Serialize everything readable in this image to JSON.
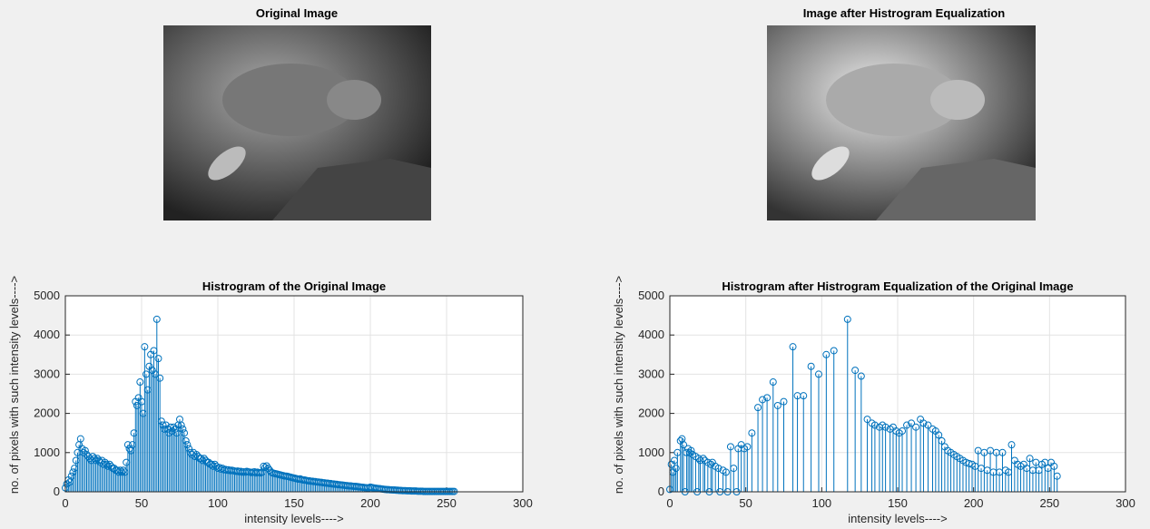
{
  "images": [
    {
      "title": "Original Image"
    },
    {
      "title": "Image after Histrogram Equalization"
    }
  ],
  "chart_data": [
    {
      "type": "stem",
      "title": "Histrogram of the Original Image",
      "x_label": "intensity levels---->",
      "y_label": "no. of pixels with such intensity levels---->",
      "xlim": [
        0,
        300
      ],
      "xticks": [
        0,
        50,
        100,
        150,
        200,
        250,
        300
      ],
      "ylim": [
        0,
        5000
      ],
      "yticks": [
        0,
        1000,
        2000,
        3000,
        4000,
        5000
      ],
      "grid": true,
      "series": [
        {
          "color": "#0072bd",
          "x": [
            0,
            1,
            2,
            3,
            4,
            5,
            6,
            7,
            8,
            9,
            10,
            11,
            12,
            13,
            14,
            15,
            16,
            17,
            18,
            19,
            20,
            21,
            22,
            23,
            24,
            25,
            26,
            27,
            28,
            29,
            30,
            31,
            32,
            33,
            34,
            35,
            36,
            37,
            38,
            39,
            40,
            41,
            42,
            43,
            44,
            45,
            46,
            47,
            48,
            49,
            50,
            51,
            52,
            53,
            54,
            55,
            56,
            57,
            58,
            59,
            60,
            61,
            62,
            63,
            64,
            65,
            66,
            67,
            68,
            69,
            70,
            71,
            72,
            73,
            74,
            75,
            76,
            77,
            78,
            79,
            80,
            81,
            82,
            83,
            84,
            85,
            86,
            87,
            88,
            89,
            90,
            91,
            92,
            93,
            94,
            95,
            96,
            97,
            98,
            99,
            100,
            101,
            102,
            103,
            104,
            105,
            106,
            107,
            108,
            109,
            110,
            111,
            112,
            113,
            114,
            115,
            116,
            117,
            118,
            119,
            120,
            121,
            122,
            123,
            124,
            125,
            126,
            127,
            128,
            129,
            130,
            131,
            132,
            133,
            134,
            135,
            136,
            137,
            138,
            139,
            140,
            141,
            142,
            143,
            144,
            145,
            146,
            147,
            148,
            149,
            150,
            151,
            152,
            153,
            154,
            155,
            156,
            157,
            158,
            159,
            160,
            161,
            162,
            163,
            164,
            165,
            166,
            167,
            168,
            169,
            170,
            171,
            172,
            173,
            174,
            175,
            176,
            177,
            178,
            179,
            180,
            181,
            182,
            183,
            184,
            185,
            186,
            187,
            188,
            189,
            190,
            191,
            192,
            193,
            194,
            195,
            196,
            197,
            198,
            199,
            200,
            201,
            202,
            203,
            204,
            205,
            206,
            207,
            208,
            209,
            210,
            211,
            212,
            213,
            214,
            215,
            216,
            217,
            218,
            219,
            220,
            221,
            222,
            223,
            224,
            225,
            226,
            227,
            228,
            229,
            230,
            231,
            232,
            233,
            234,
            235,
            236,
            237,
            238,
            239,
            240,
            241,
            242,
            243,
            244,
            245,
            246,
            247,
            248,
            249,
            250,
            251,
            252,
            253,
            254,
            255
          ],
          "values": [
            100,
            200,
            300,
            250,
            400,
            500,
            600,
            800,
            1000,
            1200,
            1350,
            1100,
            1000,
            1050,
            950,
            900,
            850,
            800,
            900,
            850,
            800,
            850,
            800,
            750,
            800,
            700,
            750,
            700,
            650,
            700,
            650,
            600,
            600,
            550,
            550,
            500,
            550,
            500,
            550,
            500,
            750,
            1200,
            1100,
            1050,
            1200,
            1500,
            2300,
            2200,
            2400,
            2800,
            2300,
            2000,
            3700,
            3000,
            2600,
            3200,
            3500,
            3100,
            3600,
            3000,
            4400,
            3400,
            2900,
            1800,
            1700,
            1600,
            1700,
            1600,
            1500,
            1650,
            1550,
            1650,
            1600,
            1500,
            1700,
            1850,
            1700,
            1600,
            1500,
            1300,
            1200,
            1100,
            1000,
            950,
            1000,
            900,
            950,
            900,
            850,
            850,
            800,
            850,
            800,
            750,
            750,
            700,
            700,
            650,
            700,
            650,
            600,
            620,
            580,
            600,
            560,
            570,
            550,
            560,
            540,
            550,
            540,
            530,
            520,
            530,
            510,
            520,
            500,
            510,
            500,
            520,
            510,
            500,
            490,
            500,
            510,
            480,
            500,
            490,
            480,
            500,
            650,
            620,
            660,
            600,
            550,
            500,
            480,
            470,
            460,
            450,
            440,
            430,
            420,
            410,
            400,
            400,
            390,
            380,
            370,
            360,
            350,
            340,
            330,
            320,
            330,
            310,
            300,
            300,
            290,
            280,
            280,
            270,
            270,
            260,
            260,
            250,
            250,
            240,
            240,
            230,
            230,
            220,
            220,
            210,
            210,
            200,
            200,
            190,
            190,
            180,
            180,
            175,
            170,
            165,
            160,
            155,
            150,
            150,
            145,
            140,
            140,
            135,
            130,
            125,
            120,
            115,
            110,
            105,
            100,
            95,
            120,
            110,
            100,
            95,
            90,
            85,
            80,
            75,
            70,
            65,
            60,
            55,
            55,
            50,
            50,
            45,
            45,
            40,
            40,
            35,
            35,
            30,
            30,
            30,
            25,
            25,
            25,
            20,
            20,
            20,
            20,
            15,
            15,
            15,
            15,
            10,
            10,
            10,
            10,
            10,
            10,
            10,
            10,
            10,
            10,
            10,
            10,
            10,
            10,
            10,
            10,
            10,
            10,
            10,
            10,
            10
          ]
        }
      ]
    },
    {
      "type": "stem",
      "title": "Histrogram after Histrogram Equalization of the Original Image",
      "x_label": "intensity levels---->",
      "y_label": "no. of pixels with such intensity levels---->",
      "xlim": [
        0,
        300
      ],
      "xticks": [
        0,
        50,
        100,
        150,
        200,
        250,
        300
      ],
      "ylim": [
        0,
        5000
      ],
      "yticks": [
        0,
        1000,
        2000,
        3000,
        4000,
        5000
      ],
      "grid": true,
      "series": [
        {
          "color": "#0072bd",
          "x": [
            0,
            1,
            2,
            3,
            4,
            5,
            7,
            8,
            9,
            10,
            11,
            12,
            13,
            14,
            15,
            17,
            18,
            19,
            20,
            22,
            23,
            25,
            26,
            27,
            28,
            30,
            32,
            33,
            35,
            37,
            38,
            40,
            42,
            44,
            45,
            47,
            49,
            51,
            54,
            58,
            61,
            64,
            68,
            71,
            75,
            81,
            84,
            88,
            93,
            98,
            103,
            108,
            117,
            122,
            126,
            130,
            133,
            135,
            138,
            140,
            142,
            145,
            147,
            149,
            151,
            153,
            156,
            159,
            162,
            165,
            167,
            170,
            173,
            175,
            177,
            179,
            181,
            183,
            185,
            187,
            189,
            191,
            193,
            195,
            197,
            199,
            201,
            203,
            205,
            207,
            209,
            211,
            213,
            215,
            217,
            219,
            221,
            223,
            225,
            227,
            229,
            231,
            233,
            235,
            237,
            239,
            241,
            243,
            245,
            247,
            249,
            251,
            253,
            255
          ],
          "values": [
            60,
            700,
            500,
            800,
            600,
            1000,
            1300,
            1350,
            1200,
            0,
            1000,
            1100,
            1000,
            1050,
            950,
            900,
            0,
            850,
            800,
            850,
            800,
            750,
            0,
            700,
            750,
            650,
            600,
            0,
            550,
            500,
            0,
            1150,
            600,
            0,
            1100,
            1200,
            1100,
            1150,
            1500,
            2150,
            2350,
            2400,
            2800,
            2200,
            2300,
            3700,
            2450,
            2450,
            3200,
            3000,
            3500,
            3600,
            4400,
            3100,
            2950,
            1850,
            1750,
            1700,
            1650,
            1700,
            1650,
            1600,
            1650,
            1550,
            1500,
            1550,
            1700,
            1750,
            1650,
            1850,
            1750,
            1700,
            1600,
            1550,
            1450,
            1300,
            1150,
            1050,
            1000,
            950,
            900,
            850,
            800,
            750,
            720,
            700,
            650,
            1050,
            600,
            1000,
            550,
            1050,
            500,
            1000,
            500,
            1000,
            550,
            500,
            1200,
            800,
            700,
            650,
            700,
            600,
            850,
            550,
            750,
            550,
            700,
            750,
            600,
            750,
            650,
            400
          ]
        }
      ]
    }
  ]
}
